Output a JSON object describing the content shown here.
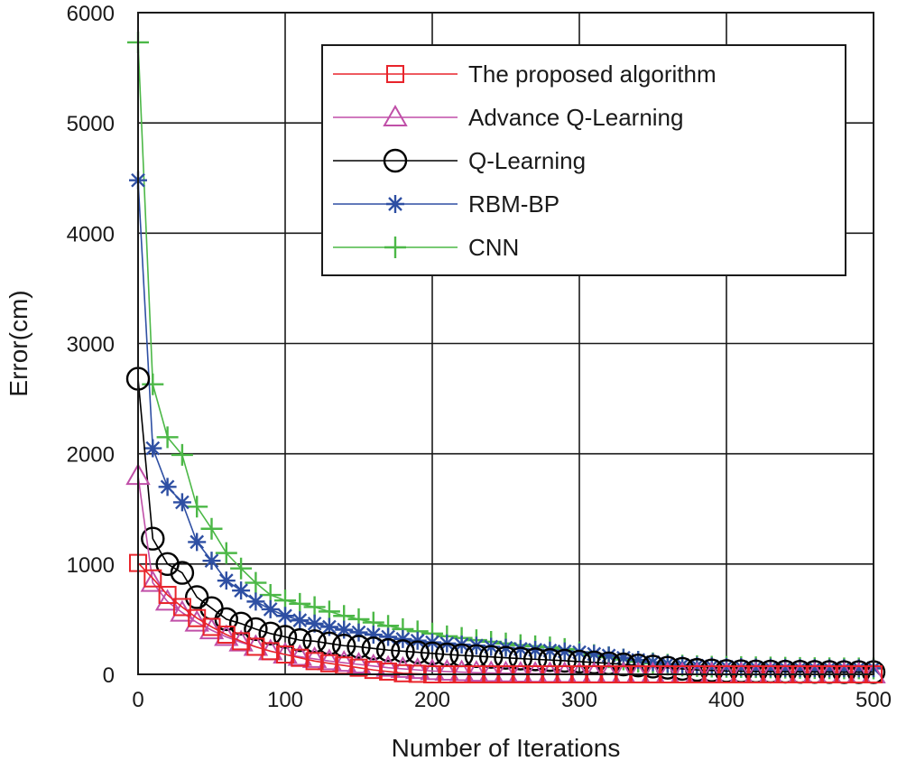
{
  "chart_data": {
    "type": "line",
    "title": "",
    "xlabel": "Number of Iterations",
    "ylabel": "Error(cm)",
    "xlim": [
      0,
      500
    ],
    "ylim": [
      0,
      6000
    ],
    "xticks": [
      0,
      100,
      200,
      300,
      400,
      500
    ],
    "yticks": [
      0,
      1000,
      2000,
      3000,
      4000,
      5000,
      6000
    ],
    "grid": true,
    "legend_position": "top-right",
    "x": [
      0,
      10,
      20,
      30,
      40,
      50,
      60,
      70,
      80,
      90,
      100,
      110,
      120,
      130,
      140,
      150,
      160,
      170,
      180,
      190,
      200,
      210,
      220,
      230,
      240,
      250,
      260,
      270,
      280,
      290,
      300,
      310,
      320,
      330,
      340,
      350,
      360,
      370,
      380,
      390,
      400,
      410,
      420,
      430,
      440,
      450,
      460,
      470,
      480,
      490,
      500
    ],
    "series": [
      {
        "name": "The proposed algorithm",
        "color": "#e8242b",
        "marker": "square",
        "values": [
          1010,
          870,
          720,
          610,
          510,
          430,
          360,
          300,
          250,
          210,
          180,
          150,
          120,
          100,
          80,
          60,
          40,
          25,
          10,
          5,
          0,
          0,
          0,
          0,
          0,
          0,
          0,
          0,
          0,
          0,
          0,
          0,
          0,
          0,
          0,
          0,
          0,
          0,
          0,
          0,
          0,
          0,
          0,
          0,
          0,
          0,
          0,
          0,
          0,
          0,
          0
        ]
      },
      {
        "name": "Advance Q-Learning",
        "color": "#c04fa8",
        "marker": "triangle",
        "values": [
          1800,
          830,
          660,
          560,
          470,
          400,
          340,
          290,
          250,
          210,
          180,
          160,
          140,
          120,
          105,
          90,
          75,
          60,
          50,
          40,
          30,
          25,
          20,
          15,
          12,
          10,
          8,
          6,
          5,
          4,
          3,
          2,
          2,
          1,
          1,
          1,
          0,
          0,
          0,
          0,
          0,
          0,
          0,
          0,
          0,
          0,
          0,
          0,
          0,
          0,
          0
        ]
      },
      {
        "name": "Q-Learning",
        "color": "#000000",
        "marker": "circle",
        "values": [
          2680,
          1230,
          1000,
          920,
          700,
          600,
          500,
          460,
          410,
          370,
          340,
          310,
          300,
          280,
          260,
          250,
          235,
          220,
          210,
          200,
          190,
          180,
          172,
          165,
          158,
          150,
          143,
          136,
          130,
          123,
          115,
          108,
          100,
          90,
          80,
          70,
          60,
          50,
          40,
          35,
          30,
          28,
          26,
          25,
          24,
          23,
          22,
          21,
          20,
          20,
          20
        ]
      },
      {
        "name": "RBM-BP",
        "color": "#2e4fa3",
        "marker": "asterisk",
        "values": [
          4480,
          2050,
          1700,
          1560,
          1200,
          1030,
          850,
          760,
          660,
          590,
          530,
          490,
          460,
          430,
          405,
          380,
          360,
          340,
          320,
          305,
          290,
          280,
          270,
          260,
          250,
          240,
          230,
          222,
          215,
          208,
          200,
          185,
          170,
          150,
          130,
          110,
          95,
          85,
          78,
          72,
          68,
          65,
          62,
          60,
          58,
          57,
          56,
          55,
          55,
          55,
          55
        ]
      },
      {
        "name": "CNN",
        "color": "#4cb847",
        "marker": "plus",
        "values": [
          5730,
          2630,
          2150,
          1990,
          1520,
          1320,
          1100,
          960,
          830,
          720,
          670,
          640,
          610,
          570,
          530,
          500,
          470,
          440,
          410,
          390,
          370,
          345,
          330,
          310,
          295,
          280,
          265,
          255,
          245,
          230,
          200,
          175,
          155,
          135,
          115,
          100,
          88,
          80,
          75,
          70,
          68,
          66,
          64,
          62,
          60,
          58,
          56,
          55,
          54,
          54,
          53
        ]
      }
    ]
  }
}
